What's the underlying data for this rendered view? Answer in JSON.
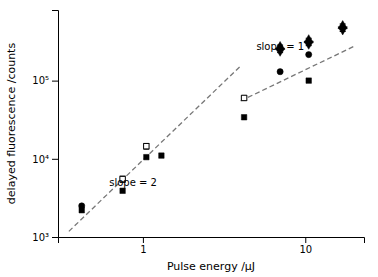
{
  "chart_data": {
    "type": "scatter",
    "xlabel": "Pulse energy /μJ",
    "ylabel": "delayed fluorescence /counts",
    "log": true,
    "grid": false,
    "xlim": [
      0.3,
      23
    ],
    "ylim": [
      1000,
      800000
    ],
    "xticks": [
      1,
      10
    ],
    "yticks": [
      {
        "value": 1000,
        "label": "10³"
      },
      {
        "value": 10000,
        "label": "10⁴"
      },
      {
        "value": 100000,
        "label": "10⁵"
      }
    ],
    "series": [
      {
        "type": "line",
        "line_style": "dashed",
        "color": "#777777",
        "x": [
          0.35,
          4.0
        ],
        "values": [
          1180.5555555555557,
          154195.0113378685
        ]
      },
      {
        "type": "line",
        "line_style": "dashed",
        "color": "#777777",
        "x": [
          4.0,
          20.0
        ],
        "values": [
          55000,
          275000
        ]
      },
      {
        "type": "scatter",
        "marker": "triangle-up",
        "color": "black",
        "x": [
          7.0,
          10.5,
          17.0
        ],
        "values": [
          270000,
          330000,
          500000
        ],
        "errors": [
          15000,
          18000,
          30000
        ]
      },
      {
        "type": "scatter",
        "marker": "triangle-down",
        "color": "black",
        "x": [
          7.0,
          10.5,
          17.0
        ],
        "values": [
          240000,
          295000,
          450000
        ],
        "errors": [
          12000,
          15000,
          25000
        ]
      },
      {
        "type": "scatter",
        "marker": "circle",
        "color": "black",
        "x": [
          0.42,
          7.0,
          10.5
        ],
        "values": [
          2500,
          130000,
          215000
        ]
      },
      {
        "type": "scatter",
        "marker": "square",
        "color": "black",
        "x": [
          0.42,
          0.75,
          1.05,
          1.3,
          4.2,
          10.5
        ],
        "values": [
          2200,
          3900,
          10500,
          11000,
          34000,
          100000
        ]
      },
      {
        "type": "scatter",
        "marker": "open-square",
        "color": "black",
        "x": [
          0.75,
          1.05,
          4.2
        ],
        "values": [
          5500,
          14500,
          60000
        ],
        "errors": [
          500,
          1200,
          4000
        ]
      }
    ],
    "annotations": [
      {
        "text": "slope = 2",
        "x": 0.62,
        "y": 4200
      },
      {
        "text": "slope = 1",
        "x": 5.0,
        "y": 230000
      }
    ]
  }
}
